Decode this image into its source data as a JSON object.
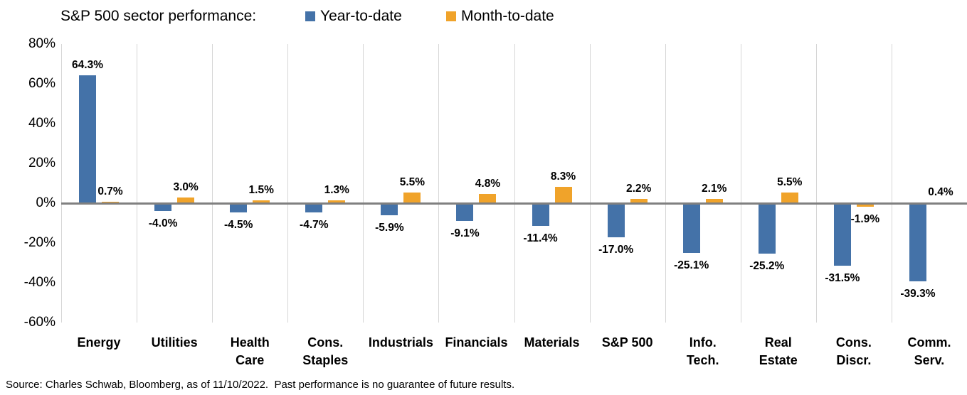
{
  "source": "Source: Charles Schwab, Bloomberg, as of 11/10/2022.  Past performance is no guarantee of future results.",
  "chart_data": {
    "type": "bar",
    "title": "S&P 500 sector performance:",
    "categories": [
      "Energy",
      "Utilities",
      "Health\nCare",
      "Cons.\nStaples",
      "Industrials",
      "Financials",
      "Materials",
      "S&P 500",
      "Info.\nTech.",
      "Real\nEstate",
      "Cons.\nDiscr.",
      "Comm.\nServ."
    ],
    "series": [
      {
        "name": "Year-to-date",
        "color": "#4472A8",
        "values": [
          64.3,
          -4.0,
          -4.5,
          -4.7,
          -5.9,
          -9.1,
          -11.4,
          -17.0,
          -25.1,
          -25.2,
          -31.5,
          -39.3
        ]
      },
      {
        "name": "Month-to-date",
        "color": "#F0A32A",
        "values": [
          0.7,
          3.0,
          1.5,
          1.3,
          5.5,
          4.8,
          8.3,
          2.2,
          2.1,
          5.5,
          -1.9,
          0.4
        ]
      }
    ],
    "value_label_format": "{v}%",
    "xlabel": "",
    "ylabel": "",
    "ylim": [
      -60,
      80
    ],
    "yticks": [
      80,
      60,
      40,
      20,
      0,
      -20,
      -40,
      -60
    ],
    "ytick_suffix": "%",
    "grid": "vertical category separators",
    "legend_position": "top",
    "zero_line_color": "#808080",
    "gridline_color": "#D6D6D6"
  }
}
